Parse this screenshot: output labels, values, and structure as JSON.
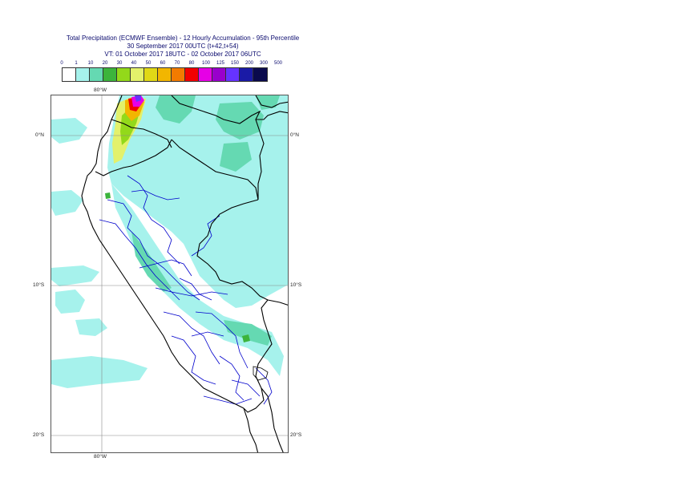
{
  "title": {
    "line1": "Total Precipitation (ECMWF Ensemble) - 12 Hourly Accumulation - 95th Percentile",
    "line2": "30 September 2017 00UTC (t+42,t+54)",
    "line3": "VT: 01 October 2017 18UTC - 02 October 2017 06UTC"
  },
  "legend": {
    "ticks": [
      "0",
      "1",
      "10",
      "20",
      "30",
      "40",
      "50",
      "60",
      "70",
      "80",
      "100",
      "125",
      "150",
      "200",
      "300",
      "500"
    ],
    "colors": [
      "#ffffff",
      "#a6f2ec",
      "#65d9b2",
      "#3cb43c",
      "#93d91a",
      "#e3f16b",
      "#e0d816",
      "#f2b600",
      "#f27b00",
      "#f20000",
      "#e600e6",
      "#9900cc",
      "#6633ff",
      "#1a1aa6",
      "#0a0a4d"
    ]
  },
  "axes": {
    "lon_top": "80°W",
    "lon_bottom": "80°W",
    "lat_0_left": "0°N",
    "lat_0_right": "0°N",
    "lat_10_left": "10°S",
    "lat_10_right": "10°S",
    "lat_20_left": "20°S",
    "lat_20_right": "20°S"
  },
  "colors": {
    "precip_light": "#a6f2ec",
    "precip_medium": "#65d9b2",
    "coastline": "#000000",
    "admin_border": "#0000cc",
    "gridline": "#888888"
  }
}
